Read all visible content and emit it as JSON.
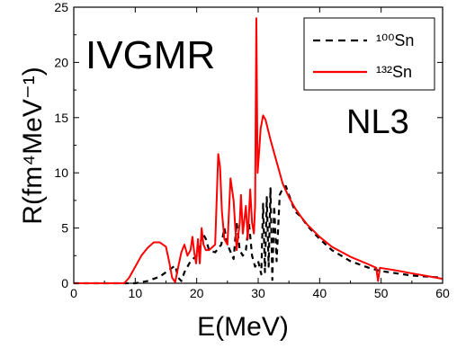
{
  "chart_data": {
    "type": "line",
    "xlabel": "E(MeV)",
    "ylabel": "R(fm⁴MeV⁻¹)",
    "xlim": [
      0,
      60
    ],
    "ylim": [
      0,
      25
    ],
    "xticks": [
      0,
      10,
      20,
      30,
      40,
      50,
      60
    ],
    "yticks": [
      0,
      5,
      10,
      15,
      20,
      25
    ],
    "grid": false,
    "legend_position": "top-right",
    "annotations": [
      "IVGMR",
      "NL3"
    ],
    "series": [
      {
        "name": "¹⁰⁰Sn",
        "color": "#000000",
        "style": "dashed",
        "points": [
          [
            0,
            0
          ],
          [
            10,
            0
          ],
          [
            12,
            0.2
          ],
          [
            14,
            0.6
          ],
          [
            15.5,
            1.2
          ],
          [
            16.5,
            1.6
          ],
          [
            17,
            0.5
          ],
          [
            17.5,
            0.2
          ],
          [
            18,
            1.0
          ],
          [
            19,
            2.0
          ],
          [
            20,
            2.5
          ],
          [
            20.5,
            3.5
          ],
          [
            21,
            4.5
          ],
          [
            21.5,
            4.0
          ],
          [
            22,
            3.0
          ],
          [
            23,
            2.8
          ],
          [
            24,
            3.5
          ],
          [
            24.5,
            5.0
          ],
          [
            25,
            3.5
          ],
          [
            26,
            2.2
          ],
          [
            26.5,
            5.5
          ],
          [
            27,
            3.0
          ],
          [
            27.5,
            2.5
          ],
          [
            28,
            3.0
          ],
          [
            28.5,
            5.5
          ],
          [
            29,
            2.5
          ],
          [
            29.5,
            1.5
          ],
          [
            30,
            2.0
          ],
          [
            30.5,
            0.8
          ],
          [
            30.8,
            7.2
          ],
          [
            31.1,
            1.0
          ],
          [
            31.4,
            7.8
          ],
          [
            31.7,
            1.5
          ],
          [
            32,
            8.6
          ],
          [
            32.3,
            0.3
          ],
          [
            32.6,
            7.0
          ],
          [
            33,
            2.0
          ],
          [
            33.5,
            8.0
          ],
          [
            34,
            8.6
          ],
          [
            34.5,
            8.8
          ],
          [
            35,
            8.0
          ],
          [
            36,
            6.5
          ],
          [
            37,
            6.0
          ],
          [
            38,
            5.2
          ],
          [
            40,
            4.0
          ],
          [
            42,
            3.0
          ],
          [
            45,
            2.0
          ],
          [
            48,
            1.4
          ],
          [
            50,
            1.1
          ],
          [
            55,
            0.7
          ],
          [
            60,
            0.5
          ]
        ]
      },
      {
        "name": "¹³²Sn",
        "color": "#ff0000",
        "style": "solid",
        "points": [
          [
            0,
            0
          ],
          [
            8.2,
            0
          ],
          [
            9,
            0.5
          ],
          [
            10,
            1.5
          ],
          [
            11,
            2.5
          ],
          [
            12,
            3.2
          ],
          [
            13,
            3.7
          ],
          [
            14,
            3.7
          ],
          [
            15,
            3.3
          ],
          [
            15.5,
            2.0
          ],
          [
            16,
            0.5
          ],
          [
            16.5,
            0.1
          ],
          [
            17,
            1.5
          ],
          [
            17.5,
            2.8
          ],
          [
            18,
            3.5
          ],
          [
            18.5,
            2.5
          ],
          [
            19,
            3.0
          ],
          [
            19.3,
            4.2
          ],
          [
            19.6,
            2.8
          ],
          [
            19.9,
            1.8
          ],
          [
            20.2,
            4.0
          ],
          [
            20.5,
            1.8
          ],
          [
            20.8,
            5.0
          ],
          [
            21.1,
            3.5
          ],
          [
            21.5,
            3.0
          ],
          [
            22,
            3.0
          ],
          [
            23,
            3.5
          ],
          [
            23.5,
            11.7
          ],
          [
            23.8,
            10.5
          ],
          [
            24.1,
            6.5
          ],
          [
            24.5,
            4.0
          ],
          [
            25,
            3.5
          ],
          [
            25.5,
            9.5
          ],
          [
            26,
            7.5
          ],
          [
            26.5,
            3.0
          ],
          [
            27,
            5.5
          ],
          [
            27.2,
            8.0
          ],
          [
            27.5,
            4.5
          ],
          [
            28,
            7.0
          ],
          [
            28.3,
            4.0
          ],
          [
            28.7,
            8.5
          ],
          [
            29,
            5.5
          ],
          [
            29.3,
            4.5
          ],
          [
            29.5,
            7.0
          ],
          [
            29.7,
            24.0
          ],
          [
            29.9,
            10.0
          ],
          [
            30.1,
            11.5
          ],
          [
            30.4,
            14.0
          ],
          [
            30.8,
            15.2
          ],
          [
            31.2,
            14.8
          ],
          [
            32,
            13.0
          ],
          [
            33,
            11.0
          ],
          [
            34,
            9.0
          ],
          [
            35,
            7.8
          ],
          [
            36,
            6.8
          ],
          [
            37,
            6.0
          ],
          [
            38,
            5.3
          ],
          [
            40,
            4.2
          ],
          [
            42,
            3.3
          ],
          [
            45,
            2.4
          ],
          [
            48,
            1.7
          ],
          [
            49.2,
            1.4
          ],
          [
            49.5,
            0.2
          ],
          [
            49.8,
            1.4
          ],
          [
            52,
            1.2
          ],
          [
            55,
            0.9
          ],
          [
            58,
            0.6
          ],
          [
            60,
            0.4
          ]
        ]
      }
    ]
  }
}
